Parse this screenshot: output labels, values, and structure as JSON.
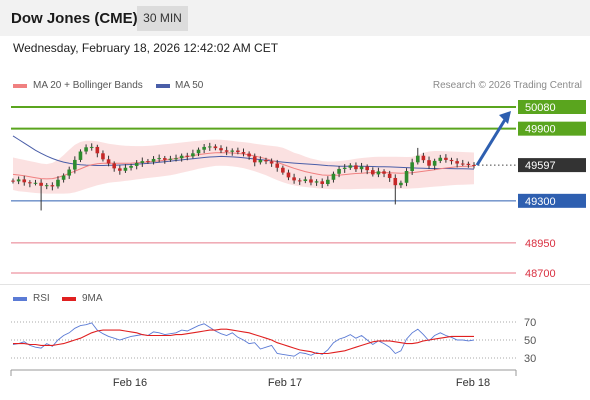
{
  "header": {
    "title": "Dow Jones (CME)",
    "interval": "30 MIN"
  },
  "timestamp": "Wednesday, February 18, 2026 12:42:02 AM CET",
  "legend": {
    "ma20": "MA 20 + Bollinger Bands",
    "ma50": "MA 50",
    "rsi": "RSI",
    "ma9": "9MA"
  },
  "credit": "Research © 2026 Trading Central",
  "colors": {
    "resistance": "#5aa51e",
    "support": "#2e5fb0",
    "lower_support": "#e87a8a",
    "candle_up": "#2e8b2e",
    "candle_down": "#c62828",
    "bollinger": "#f8c9c9",
    "ma20": "#f08080",
    "ma50": "#4a5ea8",
    "rsi": "#5b7bd5",
    "rsi_ma": "#e02020",
    "last_price_box": "#333333",
    "arrow": "#2e5fb0"
  },
  "chart_data": [
    {
      "type": "candlestick",
      "title": "Dow Jones (CME)",
      "x_tick_labels": [
        "Feb 16",
        "Feb 17",
        "Feb 18"
      ],
      "ylim": [
        48600,
        50160
      ],
      "levels": [
        {
          "value": 50080,
          "label": "50080",
          "kind": "resistance"
        },
        {
          "value": 49900,
          "label": "49900",
          "kind": "resistance"
        },
        {
          "value": 49597,
          "label": "49597",
          "kind": "last_price"
        },
        {
          "value": 49300,
          "label": "49300",
          "kind": "support"
        },
        {
          "value": 48950,
          "label": "48950",
          "kind": "support_minor"
        },
        {
          "value": 48700,
          "label": "48700",
          "kind": "support_minor"
        }
      ],
      "close": [
        49462,
        49478,
        49454,
        49446,
        49450,
        49425,
        49430,
        49420,
        49475,
        49510,
        49560,
        49640,
        49710,
        49745,
        49748,
        49695,
        49645,
        49610,
        49570,
        49550,
        49575,
        49590,
        49615,
        49630,
        49625,
        49648,
        49655,
        49641,
        49650,
        49654,
        49675,
        49670,
        49695,
        49725,
        49748,
        49752,
        49738,
        49720,
        49708,
        49718,
        49705,
        49693,
        49669,
        49620,
        49640,
        49628,
        49610,
        49575,
        49535,
        49495,
        49470,
        49465,
        49478,
        49452,
        49462,
        49440,
        49475,
        49525,
        49565,
        49575,
        49595,
        49563,
        49585,
        49555,
        49520,
        49545,
        49525,
        49490,
        49430,
        49450,
        49548,
        49620,
        49675,
        49638,
        49592,
        49632,
        49658,
        49640,
        49630,
        49610,
        49608,
        49598,
        49597
      ],
      "ma20": [
        49520,
        49515,
        49508,
        49500,
        49492,
        49485,
        49482,
        49485,
        49495,
        49510,
        49528,
        49546,
        49565,
        49585,
        49600,
        49608,
        49612,
        49614,
        49613,
        49612,
        49612,
        49614,
        49617,
        49620,
        49623,
        49628,
        49632,
        49638,
        49645,
        49652,
        49660,
        49668,
        49676,
        49684,
        49690,
        49696,
        49700,
        49701,
        49700,
        49698,
        49694,
        49689,
        49682,
        49673,
        49662,
        49650,
        49636,
        49620,
        49603,
        49586,
        49570,
        49556,
        49543,
        49532,
        49523,
        49515,
        49512,
        49512,
        49514,
        49518,
        49523,
        49527,
        49530,
        49533,
        49535,
        49536,
        49535,
        49533,
        49531,
        49530,
        49531,
        49534,
        49540,
        49546,
        49552,
        49559,
        49566,
        49573,
        49578,
        49583,
        49586,
        49588,
        49589
      ],
      "bb_upper": [
        49660,
        49650,
        49640,
        49630,
        49620,
        49610,
        49605,
        49615,
        49640,
        49680,
        49725,
        49765,
        49790,
        49800,
        49800,
        49795,
        49785,
        49775,
        49768,
        49762,
        49758,
        49756,
        49755,
        49755,
        49757,
        49760,
        49765,
        49770,
        49775,
        49780,
        49785,
        49790,
        49795,
        49800,
        49805,
        49808,
        49809,
        49807,
        49803,
        49798,
        49792,
        49788,
        49782,
        49775,
        49768,
        49762,
        49757,
        49752,
        49742,
        49722,
        49700,
        49686,
        49668,
        49652,
        49642,
        49630,
        49627,
        49627,
        49630,
        49635,
        49642,
        49650,
        49656,
        49660,
        49664,
        49666,
        49667,
        49667,
        49666,
        49665,
        49664,
        49665,
        49680,
        49700,
        49710,
        49714,
        49714,
        49712,
        49710,
        49708,
        49706,
        49704,
        49702
      ],
      "bb_lower": [
        49390,
        49380,
        49375,
        49370,
        49365,
        49362,
        49360,
        49360,
        49360,
        49360,
        49362,
        49370,
        49385,
        49400,
        49415,
        49430,
        49440,
        49450,
        49456,
        49460,
        49466,
        49471,
        49478,
        49484,
        49490,
        49495,
        49500,
        49506,
        49513,
        49522,
        49533,
        49544,
        49555,
        49566,
        49575,
        49583,
        49590,
        49592,
        49590,
        49586,
        49580,
        49572,
        49560,
        49546,
        49530,
        49512,
        49492,
        49472,
        49455,
        49440,
        49428,
        49420,
        49415,
        49410,
        49405,
        49400,
        49398,
        49397,
        49396,
        49396,
        49397,
        49398,
        49399,
        49400,
        49401,
        49402,
        49402,
        49402,
        49401,
        49400,
        49401,
        49403,
        49406,
        49410,
        49414,
        49418,
        49422,
        49426,
        49430,
        49432,
        49434,
        49436,
        49437
      ],
      "ma50": [
        49840,
        49810,
        49780,
        49750,
        49720,
        49695,
        49672,
        49652,
        49635,
        49622,
        49612,
        49605,
        49600,
        49597,
        49595,
        49594,
        49594,
        49595,
        49596,
        49598,
        49600,
        49602,
        49605,
        49608,
        49611,
        49615,
        49620,
        49625,
        49630,
        49635,
        49640,
        49645,
        49650,
        49655,
        49660,
        49664,
        49667,
        49669,
        49668,
        49665,
        49662,
        49658,
        49653,
        49648,
        49643,
        49638,
        49632,
        49627,
        49622,
        49618,
        49614,
        49610,
        49607,
        49604,
        49601,
        49597,
        49593,
        49590,
        49588,
        49587,
        49587,
        49587,
        49587,
        49586,
        49585,
        49584,
        49583,
        49582,
        49580,
        49578,
        49576,
        49574,
        49572,
        49570,
        49569,
        49569,
        49569,
        49569,
        49568,
        49567,
        49566,
        49565,
        49564
      ],
      "projection": {
        "from": 49597,
        "to": 50080
      }
    },
    {
      "type": "line",
      "title": "RSI",
      "ylim": [
        20,
        80
      ],
      "y_tick_labels": [
        "70",
        "50",
        "30"
      ],
      "series": [
        {
          "name": "RSI",
          "values": [
            45,
            46,
            48,
            44,
            42,
            41,
            46,
            43,
            50,
            55,
            58,
            63,
            66,
            67,
            69,
            61,
            57,
            54,
            52,
            50,
            52,
            54,
            55,
            56,
            55,
            59,
            58,
            56,
            57,
            58,
            61,
            60,
            63,
            66,
            68,
            64,
            60,
            57,
            55,
            58,
            53,
            50,
            46,
            47,
            40,
            42,
            44,
            35,
            34,
            33,
            32,
            36,
            35,
            33,
            36,
            34,
            39,
            47,
            51,
            53,
            56,
            52,
            55,
            50,
            45,
            49,
            46,
            42,
            35,
            38,
            51,
            58,
            62,
            56,
            49,
            55,
            58,
            55,
            53,
            50,
            50,
            49,
            50
          ]
        },
        {
          "name": "9MA",
          "values": [
            46,
            46,
            46,
            45,
            45,
            44,
            44,
            44,
            45,
            46,
            48,
            50,
            52,
            55,
            58,
            60,
            61,
            61,
            61,
            61,
            60,
            59,
            58,
            56,
            55,
            55,
            55,
            55,
            55,
            56,
            56,
            57,
            58,
            59,
            60,
            61,
            61,
            62,
            62,
            61,
            60,
            59,
            58,
            56,
            54,
            52,
            50,
            47,
            45,
            43,
            41,
            39,
            38,
            37,
            35,
            35,
            35,
            36,
            37,
            38,
            40,
            42,
            44,
            46,
            48,
            49,
            49,
            49,
            48,
            47,
            46,
            46,
            47,
            49,
            50,
            51,
            52,
            53,
            54,
            54,
            54,
            54,
            54
          ]
        }
      ]
    }
  ]
}
